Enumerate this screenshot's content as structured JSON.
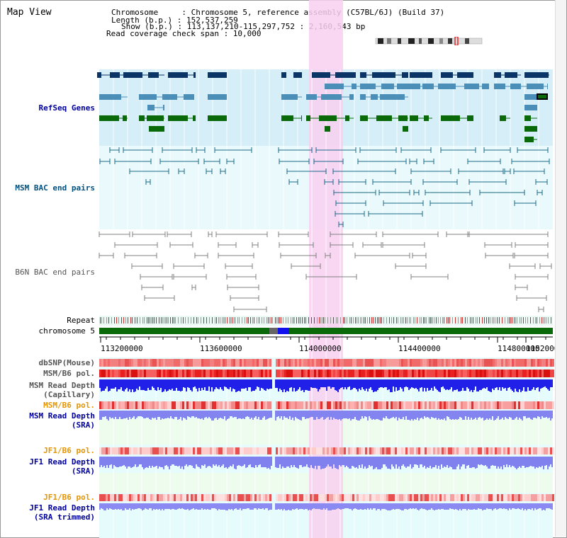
{
  "view_title": "Map View",
  "info": {
    "chromosome": "Chromosome     : Chromosome 5, reference assembly (C57BL/6J) (Build 37)",
    "length": "Length (b.p.) : 152,537,259",
    "show": "Show (b.p.) : 113,137,210-115,297,752 : 2,160,543 bp",
    "coverage": "Read coverage check span : 10,000"
  },
  "tracks": {
    "refseq": "RefSeq Genes",
    "msm_bac": "MSM BAC end pairs",
    "b6n_bac": "B6N BAC end pairs",
    "repeat": "Repeat",
    "chromosome": "chromosome 5",
    "dbsnp": "dbSNP(Mouse)",
    "msm_b6_pol_cap": "MSM/B6 pol.",
    "msm_depth_cap_1": "MSM Read Depth",
    "msm_depth_cap_2": "(Capillary)",
    "msm_b6_pol_sra": "MSM/B6 pol.",
    "msm_depth_sra_1": "MSM Read Depth",
    "msm_depth_sra_2": "(SRA)",
    "jf1_b6_pol": "JF1/B6 pol.",
    "jf1_depth_1": "JF1 Read Depth",
    "jf1_depth_2": "(SRA)",
    "jf1_b6_pol_trim": "JF1/B6 pol.",
    "jf1_depth_trim_1": "JF1 Read Depth",
    "jf1_depth_trim_2": "(SRA trimmed)"
  },
  "axis": {
    "ticks": [
      "113200000",
      "113600000",
      "114000000",
      "114400000",
      "114800000",
      "1152000"
    ]
  },
  "colors": {
    "refseq_dark": "#0a3566",
    "refseq_mid": "#4b8fb8",
    "refseq_green": "#0a6a0a",
    "msm_line": "#1a6a8a",
    "b6n_line": "#808080",
    "highlight": "#f8d0f0",
    "chromosome_bar": "#0a6a0a",
    "orange_label": "#e69500",
    "blue_label": "#00009c",
    "msm_label": "#005080"
  }
}
